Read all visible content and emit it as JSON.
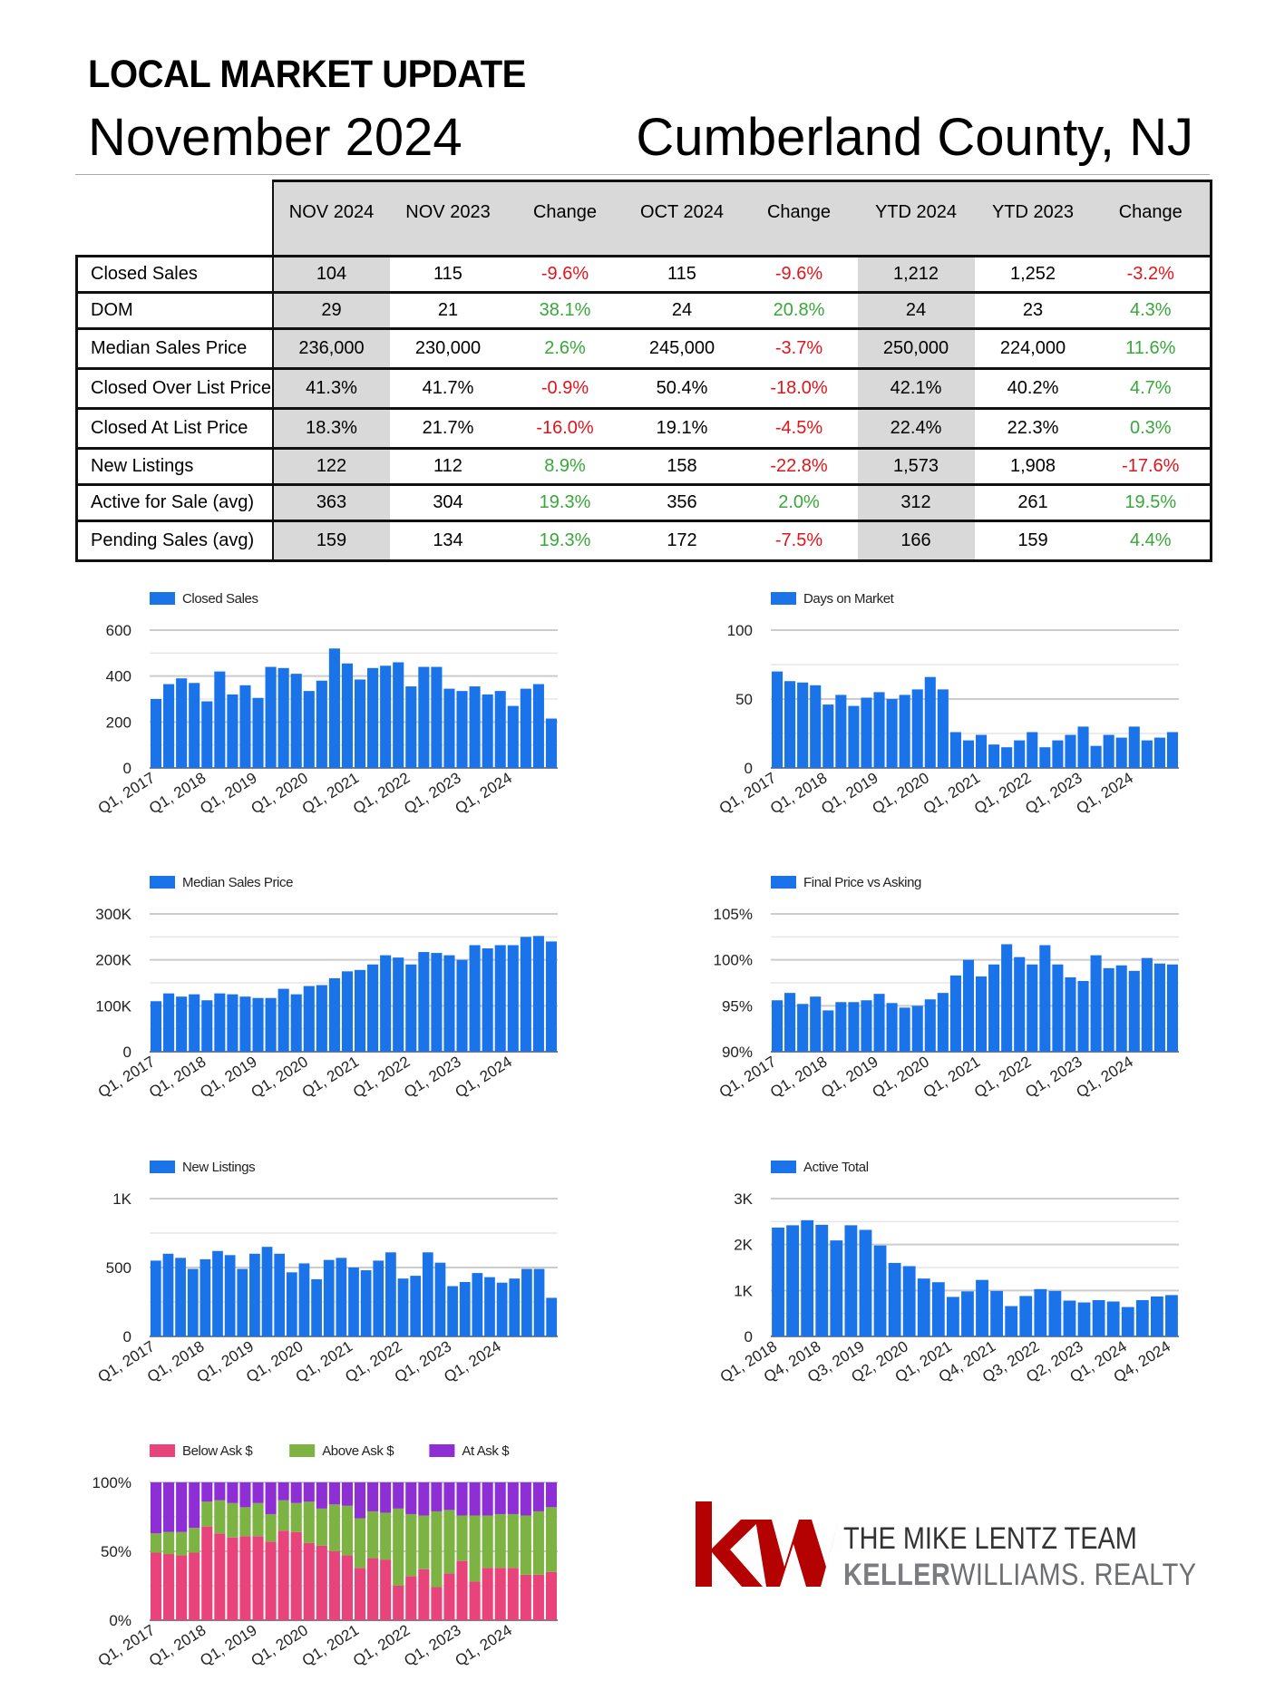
{
  "header": {
    "title": "LOCAL MARKET UPDATE",
    "month": "November 2024",
    "location": "Cumberland County, NJ"
  },
  "table": {
    "columns": [
      "NOV 2024",
      "NOV 2023",
      "Change",
      "OCT 2024",
      "Change",
      "YTD 2024",
      "YTD 2023",
      "Change"
    ],
    "rows": [
      {
        "label": "Closed Sales",
        "values": [
          "104",
          "115",
          "-9.6%",
          "115",
          "-9.6%",
          "1,212",
          "1,252",
          "-3.2%"
        ]
      },
      {
        "label": "DOM",
        "values": [
          "29",
          "21",
          "38.1%",
          "24",
          "20.8%",
          "24",
          "23",
          "4.3%"
        ]
      },
      {
        "label": "Median Sales Price",
        "values": [
          "236,000",
          "230,000",
          "2.6%",
          "245,000",
          "-3.7%",
          "250,000",
          "224,000",
          "11.6%"
        ]
      },
      {
        "label": "Closed Over List Price",
        "values": [
          "41.3%",
          "41.7%",
          "-0.9%",
          "50.4%",
          "-18.0%",
          "42.1%",
          "40.2%",
          "4.7%"
        ]
      },
      {
        "label": "Closed At List Price",
        "values": [
          "18.3%",
          "21.7%",
          "-16.0%",
          "19.1%",
          "-4.5%",
          "22.4%",
          "22.3%",
          "0.3%"
        ]
      },
      {
        "label": "New Listings",
        "values": [
          "122",
          "112",
          "8.9%",
          "158",
          "-22.8%",
          "1,573",
          "1,908",
          "-17.6%"
        ]
      },
      {
        "label": "Active for Sale (avg)",
        "values": [
          "363",
          "304",
          "19.3%",
          "356",
          "2.0%",
          "312",
          "261",
          "19.5%"
        ]
      },
      {
        "label": "Pending Sales (avg)",
        "values": [
          "159",
          "134",
          "19.3%",
          "172",
          "-7.5%",
          "166",
          "159",
          "4.4%"
        ]
      }
    ]
  },
  "colors": {
    "bar": "#1a73e8",
    "positive": "#38a83a",
    "negative": "#e0151b",
    "below_ask": "#e8437a",
    "above_ask": "#7cb342",
    "at_ask": "#8e2fd6",
    "kw_red": "#b40101"
  },
  "chart_data": [
    {
      "type": "bar",
      "legend": [
        "Closed Sales"
      ],
      "x_tick_labels": [
        "Q1, 2017",
        "Q1, 2018",
        "Q1, 2019",
        "Q1, 2020",
        "Q1, 2021",
        "Q1, 2022",
        "Q1, 2023",
        "Q1, 2024"
      ],
      "y_tick_labels": [
        "0",
        "200",
        "400",
        "600"
      ],
      "ylim": [
        0,
        600
      ],
      "values": [
        300,
        365,
        390,
        370,
        290,
        420,
        320,
        360,
        305,
        440,
        435,
        410,
        335,
        380,
        520,
        455,
        385,
        435,
        445,
        460,
        355,
        440,
        440,
        345,
        335,
        355,
        320,
        335,
        270,
        345,
        365,
        215
      ]
    },
    {
      "type": "bar",
      "legend": [
        "Days on Market"
      ],
      "x_tick_labels": [
        "Q1, 2017",
        "Q1, 2018",
        "Q1, 2019",
        "Q1, 2020",
        "Q1, 2021",
        "Q1, 2022",
        "Q1, 2023",
        "Q1, 2024"
      ],
      "y_tick_labels": [
        "0",
        "50",
        "100"
      ],
      "ylim": [
        0,
        100
      ],
      "values": [
        70,
        63,
        62,
        60,
        46,
        53,
        45,
        51,
        55,
        50,
        53,
        57,
        66,
        57,
        26,
        20,
        24,
        17,
        15,
        20,
        26,
        15,
        20,
        24,
        30,
        16,
        24,
        22,
        30,
        20,
        22,
        26
      ]
    },
    {
      "type": "bar",
      "legend": [
        "Median Sales Price"
      ],
      "x_tick_labels": [
        "Q1, 2017",
        "Q1, 2018",
        "Q1, 2019",
        "Q1, 2020",
        "Q1, 2021",
        "Q1, 2022",
        "Q1, 2023",
        "Q1, 2024"
      ],
      "y_tick_labels": [
        "0",
        "100K",
        "200K",
        "300K"
      ],
      "ylim": [
        0,
        300000
      ],
      "values": [
        110000,
        127000,
        120000,
        125000,
        112000,
        127000,
        125000,
        120000,
        117000,
        117000,
        137000,
        125000,
        143000,
        145000,
        160000,
        175000,
        178000,
        190000,
        210000,
        205000,
        190000,
        217000,
        215000,
        210000,
        200000,
        232000,
        225000,
        232000,
        232000,
        250000,
        252000,
        240000
      ]
    },
    {
      "type": "bar",
      "legend": [
        "Final Price vs Asking"
      ],
      "x_tick_labels": [
        "Q1, 2017",
        "Q1, 2018",
        "Q1, 2019",
        "Q1, 2020",
        "Q1, 2021",
        "Q1, 2022",
        "Q1, 2023",
        "Q1, 2024"
      ],
      "y_tick_labels": [
        "90%",
        "95%",
        "100%",
        "105%"
      ],
      "ylim": [
        90,
        105
      ],
      "values": [
        95.6,
        96.4,
        95.2,
        96.0,
        94.5,
        95.4,
        95.4,
        95.6,
        96.3,
        95.3,
        94.8,
        95.0,
        95.7,
        96.4,
        98.3,
        100.0,
        98.2,
        99.5,
        101.7,
        100.3,
        99.5,
        101.6,
        99.5,
        98.1,
        97.7,
        100.5,
        99.1,
        99.4,
        98.8,
        100.2,
        99.6,
        99.5
      ]
    },
    {
      "type": "bar",
      "legend": [
        "New Listings"
      ],
      "x_tick_labels": [
        "Q1, 2017",
        "Q1, 2018",
        "Q1, 2019",
        "Q1, 2020",
        "Q1, 2021",
        "Q1, 2022",
        "Q1, 2023",
        "Q1, 2024"
      ],
      "y_tick_labels": [
        "0",
        "500",
        "1K"
      ],
      "ylim": [
        0,
        1000
      ],
      "values": [
        550,
        600,
        570,
        490,
        560,
        620,
        590,
        490,
        600,
        650,
        600,
        465,
        530,
        415,
        555,
        570,
        500,
        480,
        550,
        610,
        420,
        440,
        610,
        535,
        365,
        395,
        460,
        430,
        390,
        420,
        490,
        490,
        280
      ]
    },
    {
      "type": "bar",
      "legend": [
        "Active Total"
      ],
      "x_tick_labels": [
        "Q1, 2018",
        "Q4, 2018",
        "Q3, 2019",
        "Q2, 2020",
        "Q1, 2021",
        "Q4, 2021",
        "Q3, 2022",
        "Q2, 2023",
        "Q1, 2024",
        "Q4, 2024"
      ],
      "y_tick_labels": [
        "0",
        "1K",
        "2K",
        "3K"
      ],
      "ylim": [
        0,
        3000
      ],
      "values": [
        2370,
        2420,
        2530,
        2430,
        2090,
        2420,
        2320,
        1980,
        1600,
        1530,
        1260,
        1180,
        860,
        980,
        1230,
        990,
        660,
        880,
        1030,
        990,
        780,
        740,
        790,
        760,
        640,
        790,
        870,
        900
      ]
    },
    {
      "type": "bar",
      "stacked": true,
      "legend": [
        "Below Ask $",
        "Above Ask $",
        "At Ask $"
      ],
      "x_tick_labels": [
        "Q1, 2017",
        "Q1, 2018",
        "Q1, 2019",
        "Q1, 2020",
        "Q1, 2021",
        "Q1, 2022",
        "Q1, 2023",
        "Q1, 2024"
      ],
      "y_tick_labels": [
        "0%",
        "50%",
        "100%"
      ],
      "ylim": [
        0,
        100
      ],
      "series": [
        {
          "name": "Below Ask $",
          "values": [
            49,
            48,
            47,
            49,
            68,
            63,
            60,
            61,
            61,
            57,
            65,
            64,
            56,
            54,
            50,
            47,
            38,
            45,
            44,
            25,
            32,
            37,
            24,
            34,
            43,
            28,
            38,
            38,
            38,
            33,
            33,
            35
          ]
        },
        {
          "name": "Above Ask $",
          "values": [
            14,
            16,
            17,
            18,
            18,
            24,
            25,
            21,
            24,
            20,
            22,
            21,
            30,
            27,
            34,
            36,
            36,
            34,
            34,
            56,
            45,
            39,
            55,
            46,
            33,
            48,
            38,
            39,
            39,
            43,
            46,
            47
          ]
        },
        {
          "name": "At Ask $",
          "values": [
            37,
            36,
            36,
            33,
            14,
            13,
            15,
            18,
            15,
            23,
            13,
            15,
            14,
            19,
            16,
            17,
            26,
            21,
            22,
            19,
            23,
            24,
            21,
            20,
            24,
            24,
            24,
            23,
            23,
            24,
            21,
            18
          ]
        }
      ]
    }
  ],
  "logo": {
    "monogram": "kw",
    "team": "THE MIKE LENTZ TEAM",
    "brand_bold": "KELLER",
    "brand_light": "WILLIAMS.",
    "brand_tail": "REALTY"
  }
}
